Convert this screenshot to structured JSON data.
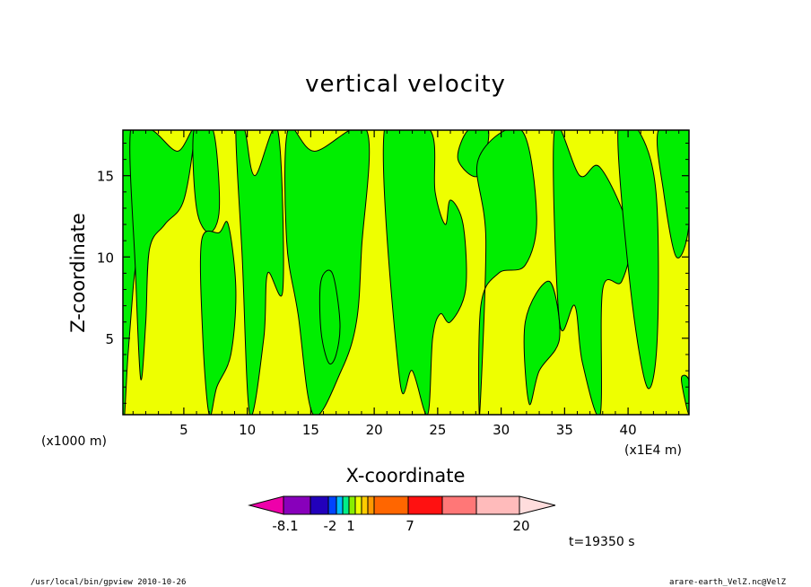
{
  "chart_data": {
    "type": "heatmap",
    "title": "vertical velocity",
    "xlabel": "X-coordinate",
    "ylabel": "Z-coordinate",
    "x_unit": "(x1E4 m)",
    "y_unit": "(x1000 m)",
    "xlim": [
      0.2,
      44.8
    ],
    "ylim": [
      0.3,
      17.8
    ],
    "x_ticks": [
      5,
      10,
      15,
      20,
      25,
      30,
      35,
      40
    ],
    "y_ticks": [
      5,
      10,
      15
    ],
    "x_tick_labels": [
      "5",
      "10",
      "15",
      "20",
      "25",
      "30",
      "35",
      "40"
    ],
    "y_tick_labels": [
      "5",
      "10",
      "15"
    ],
    "field_colors": {
      "positive": "#eeff00",
      "negative": "#00ee00",
      "contour": "#000000"
    },
    "negative_regions": [
      {
        "x": [
          0.2,
          0.8,
          1.4,
          1.0,
          0.6,
          0.2
        ],
        "z": [
          17.8,
          17.8,
          12,
          8,
          4,
          0.3
        ]
      },
      {
        "x": [
          0.8,
          2.5,
          4.5,
          5.8,
          5.0,
          3.5,
          2.3,
          2.0,
          1.6,
          1.2
        ],
        "z": [
          17.8,
          17.8,
          16.5,
          17.8,
          13.5,
          12.0,
          10.5,
          6.0,
          2.5,
          9.0
        ]
      },
      {
        "x": [
          5.8,
          7.3,
          7.8,
          7.0,
          6.0
        ],
        "z": [
          17.8,
          17.8,
          13.0,
          11.5,
          13.0
        ]
      },
      {
        "x": [
          6.4,
          7.8,
          8.5,
          9.1,
          8.7,
          7.6,
          7.0,
          6.5
        ],
        "z": [
          11.0,
          11.5,
          12.0,
          8.0,
          4.0,
          2.0,
          0.3,
          5.0
        ]
      },
      {
        "x": [
          9.1,
          9.8,
          10.6,
          12.4,
          12.8,
          11.6,
          11.3,
          10.2,
          9.6
        ],
        "z": [
          17.8,
          17.8,
          15.0,
          17.8,
          8.0,
          9.0,
          5.0,
          0.3,
          10.0
        ]
      },
      {
        "x": [
          13.2,
          15.3,
          19.4,
          19.0,
          18.6,
          17.4,
          15.2,
          14.0,
          13.1
        ],
        "z": [
          17.8,
          16.5,
          17.8,
          10.5,
          6.0,
          3.0,
          0.3,
          6.5,
          11.0
        ]
      },
      {
        "x": [
          15.8,
          16.7,
          17.3,
          17.0,
          16.4,
          15.8
        ],
        "z": [
          8.5,
          9.0,
          6.0,
          4.0,
          3.5,
          5.5
        ]
      },
      {
        "x": [
          20.8,
          24.4,
          24.8,
          25.6,
          26.0,
          27.0,
          27.2,
          26.0,
          25.2,
          24.6,
          24.2,
          23.0,
          22.0
        ],
        "z": [
          17.8,
          17.8,
          14.0,
          12.0,
          13.5,
          12.0,
          8.0,
          6.0,
          6.5,
          5.0,
          0.3,
          3.0,
          2.5
        ]
      },
      {
        "x": [
          27.4,
          29.0,
          28.2,
          26.6
        ],
        "z": [
          17.8,
          17.8,
          15.0,
          16.0
        ]
      },
      {
        "x": [
          28.2,
          31.6,
          32.8,
          31.9,
          29.8,
          28.4,
          28.3,
          28.8
        ],
        "z": [
          16.0,
          17.8,
          12.5,
          9.5,
          9.0,
          7.0,
          0.3,
          11.0
        ]
      },
      {
        "x": [
          31.9,
          33.8,
          34.6,
          33.0,
          32.2
        ],
        "z": [
          6.0,
          8.5,
          5.0,
          3.0,
          1.0
        ]
      },
      {
        "x": [
          34.2,
          36.2,
          37.8,
          40.1,
          39.5,
          38.0,
          37.8,
          36.4,
          35.8,
          34.6
        ],
        "z": [
          17.8,
          15.0,
          15.5,
          11.5,
          8.5,
          8.0,
          0.3,
          3.5,
          7.0,
          6.0
        ]
      },
      {
        "x": [
          39.2,
          40.8,
          42.2,
          42.3,
          41.5,
          40.2
        ],
        "z": [
          17.8,
          17.8,
          14.0,
          5.0,
          2.0,
          8.0
        ]
      },
      {
        "x": [
          42.4,
          44.8,
          44.8,
          43.8,
          42.8
        ],
        "z": [
          17.8,
          17.8,
          12.0,
          10.0,
          14.0
        ]
      },
      {
        "x": [
          44.2,
          44.8,
          44.8
        ],
        "z": [
          2.5,
          2.4,
          0.3
        ]
      }
    ],
    "colorbar": {
      "colors": [
        "#ee00aa",
        "#8800bb",
        "#2200bb",
        "#0044ff",
        "#00bbff",
        "#00ee88",
        "#88ee00",
        "#eeff00",
        "#ffcc00",
        "#ff9900",
        "#ff6600",
        "#ff1111",
        "#ff7777",
        "#ffbbbb",
        "#ffdddd"
      ],
      "tick_labels": [
        "-8.1",
        "-2",
        "1",
        "7",
        "20"
      ]
    },
    "time_label": "t=19350 s"
  },
  "footer": {
    "left": "/usr/local/bin/gpview  2010-10-26",
    "right": "arare-earth_VelZ.nc@VelZ"
  }
}
